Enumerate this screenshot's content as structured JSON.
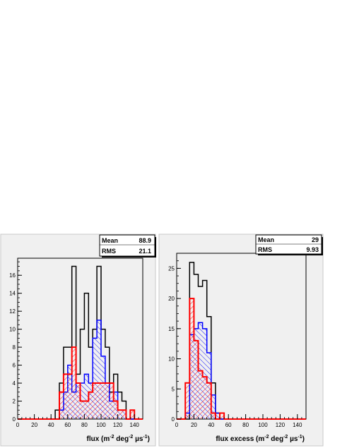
{
  "chart_data": [
    {
      "type": "histogram",
      "xlabel": "flux (m⁻² deg⁻² µs⁻¹)",
      "xlim": [
        0,
        150
      ],
      "ylim": [
        0,
        17.9
      ],
      "bin_width": 5,
      "x_ticks": [
        0,
        20,
        40,
        60,
        80,
        100,
        120,
        140
      ],
      "y_ticks": [
        0,
        2,
        4,
        6,
        8,
        10,
        12,
        14,
        16
      ],
      "stats": [
        {
          "label": "Mean",
          "value": "88.9"
        },
        {
          "label": "RMS",
          "value": "21.1"
        }
      ],
      "series": [
        {
          "color": "#000000",
          "fill": "none",
          "values": [
            0,
            0,
            0,
            0,
            0,
            0,
            0,
            0,
            0,
            1,
            4,
            8,
            8,
            17,
            5,
            10,
            14,
            8,
            10,
            17,
            10,
            8,
            3,
            5,
            3,
            2,
            0,
            0,
            0,
            0
          ]
        },
        {
          "color": "#0000ff",
          "fill": "hatch",
          "values": [
            0,
            0,
            0,
            0,
            0,
            0,
            0,
            0,
            0,
            0,
            1,
            3,
            6,
            3,
            4,
            4,
            5,
            4,
            9,
            11,
            7,
            4,
            2,
            3,
            1,
            1,
            0,
            0,
            0,
            0
          ]
        },
        {
          "color": "#ff0000",
          "fill": "hatch",
          "values": [
            0,
            0,
            0,
            0,
            0,
            0,
            0,
            0,
            0,
            0,
            3,
            5,
            5,
            8,
            4,
            2,
            2,
            3,
            4,
            4,
            4,
            4,
            4,
            2,
            1,
            1,
            0,
            1,
            0,
            0
          ]
        }
      ]
    },
    {
      "type": "histogram",
      "xlabel": "flux excess (m⁻² deg⁻² µs⁻¹)",
      "xlim": [
        0,
        150
      ],
      "ylim": [
        0,
        27.5
      ],
      "bin_width": 5,
      "x_ticks": [
        0,
        20,
        40,
        60,
        80,
        100,
        120,
        140
      ],
      "y_ticks": [
        0,
        5,
        10,
        15,
        20,
        25
      ],
      "stats": [
        {
          "label": "Mean",
          "value": "29"
        },
        {
          "label": "RMS",
          "value": "9.93"
        }
      ],
      "series": [
        {
          "color": "#000000",
          "fill": "none",
          "values": [
            0,
            0,
            0,
            26,
            24,
            22,
            23,
            17,
            6,
            1,
            0,
            0,
            0,
            0,
            0,
            0,
            0,
            0,
            0,
            0,
            0,
            0,
            0,
            0,
            0,
            0,
            0,
            0,
            0,
            0
          ]
        },
        {
          "color": "#0000ff",
          "fill": "hatch",
          "values": [
            0,
            0,
            1,
            14,
            15,
            16,
            15,
            11,
            4,
            1,
            0,
            0,
            0,
            0,
            0,
            0,
            0,
            0,
            0,
            0,
            0,
            0,
            0,
            0,
            0,
            0,
            0,
            0,
            0,
            0
          ]
        },
        {
          "color": "#ff0000",
          "fill": "hatch",
          "values": [
            0,
            0,
            6,
            20,
            13,
            8,
            7,
            6,
            1,
            0,
            1,
            0,
            0,
            0,
            0,
            0,
            0,
            0,
            0,
            0,
            0,
            0,
            0,
            0,
            0,
            0,
            0,
            0,
            0,
            0
          ]
        }
      ]
    }
  ]
}
